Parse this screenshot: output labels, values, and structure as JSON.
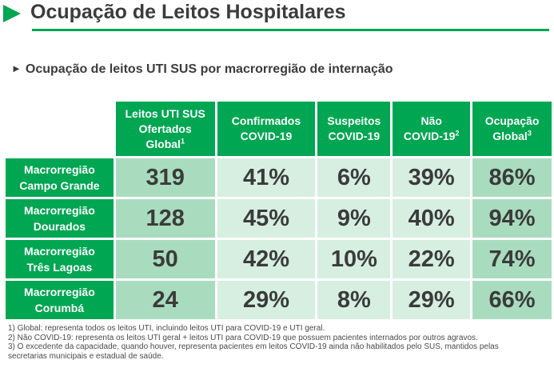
{
  "header": {
    "title": "Ocupação de Leitos Hospitalares",
    "subtitle_arrow": "►",
    "subtitle": "Ocupação de leitos UTI SUS por macrorregião de internação"
  },
  "table": {
    "columns": [
      {
        "lines": [
          "Leitos UTI SUS",
          "Ofertados",
          "Global"
        ],
        "sup": "1"
      },
      {
        "lines": [
          "Confirmados",
          "COVID-19"
        ],
        "sup": ""
      },
      {
        "lines": [
          "Suspeitos",
          "COVID-19"
        ],
        "sup": ""
      },
      {
        "lines": [
          "Não",
          "COVID-19"
        ],
        "sup": "2"
      },
      {
        "lines": [
          "Ocupação",
          "Global"
        ],
        "sup": "3"
      }
    ],
    "rows": [
      {
        "region": [
          "Macrorregião",
          "Campo Grande"
        ],
        "values": [
          "319",
          "41%",
          "6%",
          "39%",
          "86%"
        ]
      },
      {
        "region": [
          "Macrorregião",
          "Dourados"
        ],
        "values": [
          "128",
          "45%",
          "9%",
          "40%",
          "94%"
        ]
      },
      {
        "region": [
          "Macrorregião",
          "Três Lagoas"
        ],
        "values": [
          "50",
          "42%",
          "10%",
          "22%",
          "74%"
        ]
      },
      {
        "region": [
          "Macrorregião",
          "Corumbá"
        ],
        "values": [
          "24",
          "29%",
          "8%",
          "29%",
          "66%"
        ]
      }
    ]
  },
  "footnotes": [
    "1) Global: representa todos os leitos UTI, incluindo leitos UTI para COVID-19 e UTI geral.",
    "2) Não COVID-19: representa os leitos UTI geral + leitos UTI para COVID-19 que possuem pacientes internados por outros agravos.",
    "3) O excedente da capacidade, quando houver, representa pacientes em leitos COVID-19 ainda não habilitados pelo SUS, mantidos pelas",
    "secretarias municipais e estadual de saúde."
  ],
  "colors": {
    "accent_green": "#00a651",
    "cell_dark": "#a9dcbf",
    "cell_light": "#d6efe1"
  }
}
